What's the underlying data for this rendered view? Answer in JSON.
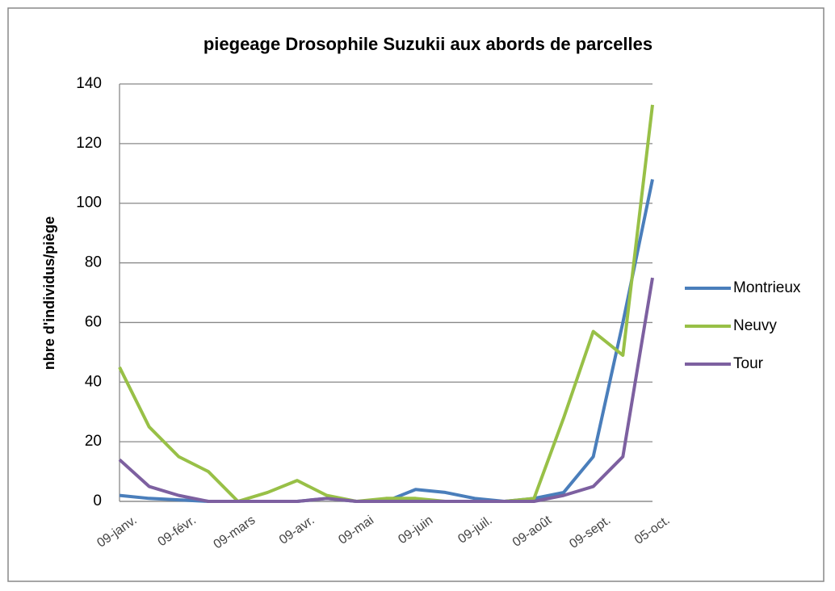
{
  "chart_data": {
    "type": "line",
    "title": "piegeage Drosophile Suzukii aux abords de parcelles",
    "y_label": "nbre d'individus/piège",
    "categories": [
      "09-janv.",
      null,
      "09-févr.",
      null,
      "09-mars",
      null,
      "09-avr.",
      null,
      "09-mai",
      null,
      "09-juin",
      null,
      "09-juil.",
      null,
      "09-août",
      null,
      "09-sept.",
      null,
      "05-oct."
    ],
    "series": [
      {
        "name": "Montrieux",
        "color": "#4a7ebb",
        "values": [
          2,
          1,
          0.5,
          0,
          0,
          0,
          0,
          1,
          0,
          0,
          4,
          3,
          1,
          0,
          1,
          3,
          15,
          60,
          108
        ]
      },
      {
        "name": "Neuvy",
        "color": "#98c047",
        "values": [
          45,
          25,
          15,
          10,
          0,
          3,
          7,
          2,
          0,
          1,
          1,
          0,
          0,
          0,
          1,
          28,
          57,
          49,
          133
        ]
      },
      {
        "name": "Tour",
        "color": "#7d60a0",
        "values": [
          14,
          5,
          2,
          0,
          0,
          0,
          0,
          1,
          0,
          0,
          0,
          0,
          0,
          0,
          0,
          2,
          5,
          15,
          75
        ]
      }
    ],
    "ylim": [
      0,
      140
    ],
    "yticks": [
      0,
      20,
      40,
      60,
      80,
      100,
      120,
      140
    ],
    "grid": true,
    "legend": "right"
  }
}
